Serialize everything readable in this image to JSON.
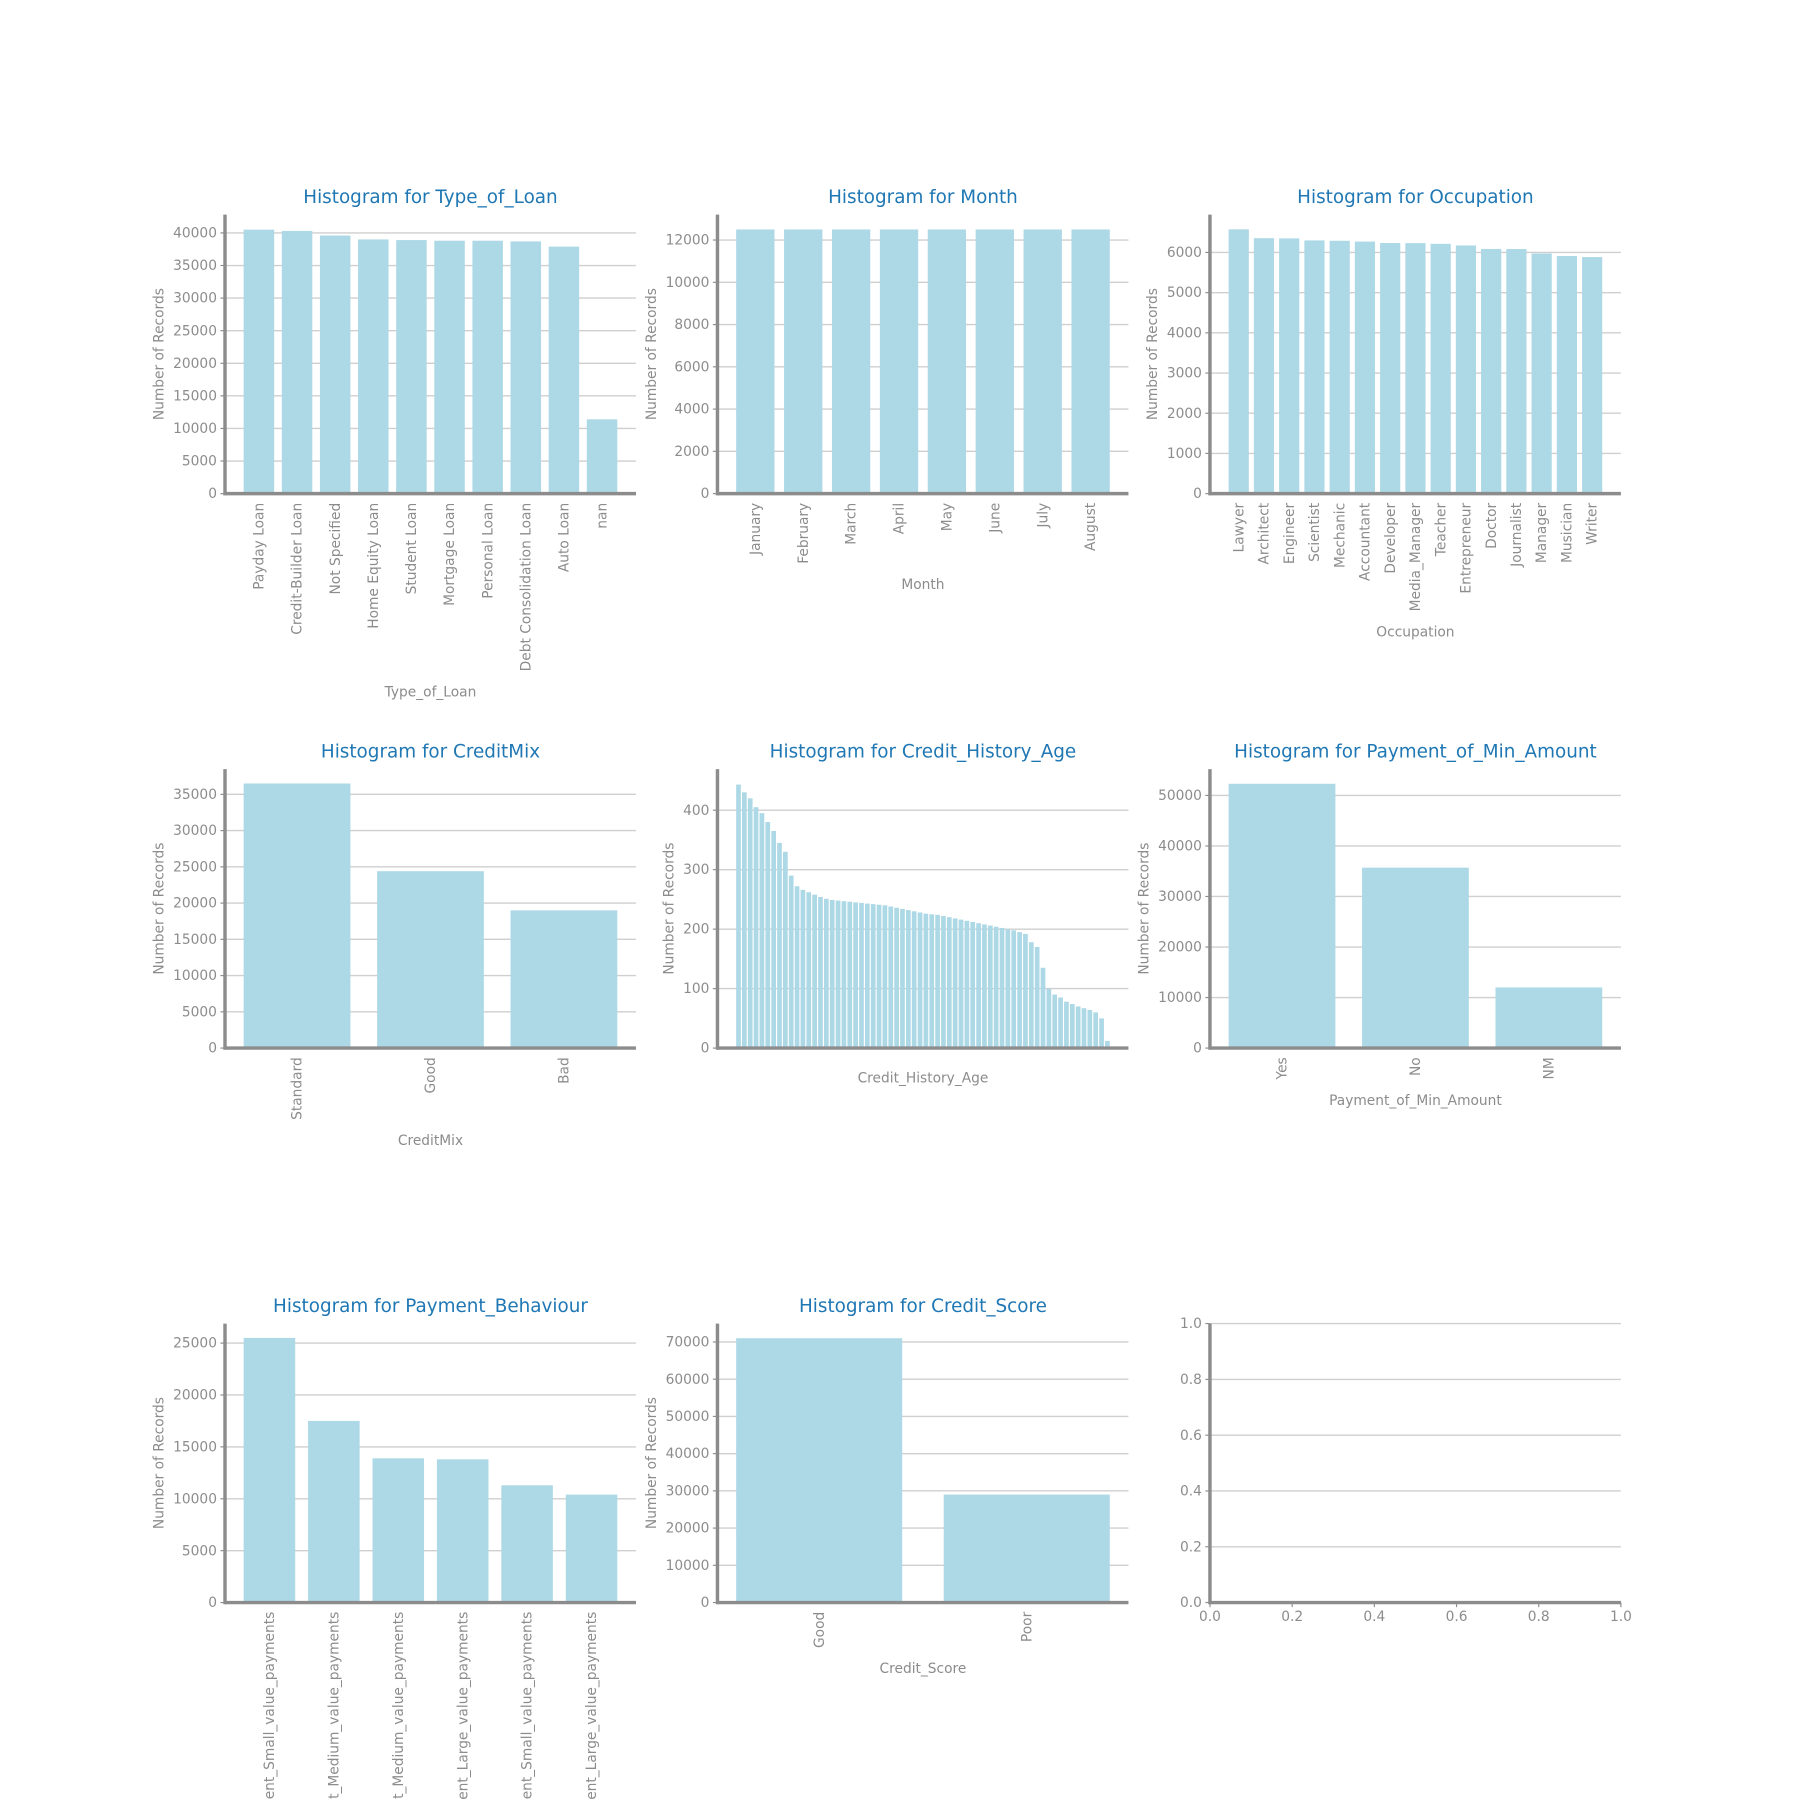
{
  "chart_data": [
    {
      "type": "bar",
      "title": "Histogram for Type_of_Loan",
      "xlabel": "Type_of_Loan",
      "ylabel": "Number of Records",
      "categories": [
        "Payday Loan",
        "Credit-Builder Loan",
        "Not Specified",
        "Home Equity Loan",
        "Student Loan",
        "Mortgage Loan",
        "Personal Loan",
        "Debt Consolidation Loan",
        "Auto Loan",
        "nan"
      ],
      "values": [
        40500,
        40300,
        39600,
        39000,
        38900,
        38800,
        38800,
        38700,
        37900,
        11400
      ],
      "color": "#add8e6",
      "ylim": [
        0,
        42800
      ],
      "yticks": [
        0,
        5000,
        10000,
        15000,
        20000,
        25000,
        30000,
        35000,
        40000
      ],
      "grid": true
    },
    {
      "type": "bar",
      "title": "Histogram for Month",
      "xlabel": "Month",
      "ylabel": "Number of Records",
      "categories": [
        "January",
        "February",
        "March",
        "April",
        "May",
        "June",
        "July",
        "August"
      ],
      "values": [
        12500,
        12500,
        12500,
        12500,
        12500,
        12500,
        12500,
        12500
      ],
      "color": "#add8e6",
      "ylim": [
        0,
        13200
      ],
      "yticks": [
        0,
        2000,
        4000,
        6000,
        8000,
        10000,
        12000
      ],
      "grid": true
    },
    {
      "type": "bar",
      "title": "Histogram for Occupation",
      "xlabel": "Occupation",
      "ylabel": "Number of Records",
      "categories": [
        "Lawyer",
        "Architect",
        "Engineer",
        "Scientist",
        "Mechanic",
        "Accountant",
        "Developer",
        "Media_Manager",
        "Teacher",
        "Entrepreneur",
        "Doctor",
        "Journalist",
        "Manager",
        "Musician",
        "Writer"
      ],
      "values": [
        6575,
        6355,
        6350,
        6299,
        6291,
        6271,
        6235,
        6232,
        6215,
        6174,
        6087,
        6085,
        5973,
        5911,
        5885
      ],
      "color": "#add8e6",
      "ylim": [
        0,
        6940
      ],
      "yticks": [
        0,
        1000,
        2000,
        3000,
        4000,
        5000,
        6000
      ],
      "grid": true
    },
    {
      "type": "bar",
      "title": "Histogram for CreditMix",
      "xlabel": "CreditMix",
      "ylabel": "Number of Records",
      "categories": [
        "Standard",
        "Good",
        "Bad"
      ],
      "values": [
        36500,
        24400,
        19000
      ],
      "color": "#add8e6",
      "ylim": [
        0,
        38480
      ],
      "yticks": [
        0,
        5000,
        10000,
        15000,
        20000,
        25000,
        30000,
        35000
      ],
      "grid": true
    },
    {
      "type": "bar",
      "title": "Histogram for Credit_History_Age",
      "xlabel": "Credit_History_Age",
      "ylabel": "Number of Records",
      "categories": [
        null,
        null,
        null,
        null,
        null,
        null,
        null,
        null,
        null,
        null,
        null,
        null,
        null,
        null,
        null,
        null,
        null,
        null,
        null,
        null,
        null,
        null,
        null,
        null,
        null,
        null,
        null,
        null,
        null,
        null,
        null,
        null,
        null,
        null,
        null,
        null,
        null,
        null,
        null,
        null,
        null,
        null,
        null,
        null,
        null,
        null,
        null,
        null,
        null,
        null,
        null,
        null,
        null,
        null,
        null,
        null,
        null,
        null,
        null,
        null,
        null,
        null,
        null,
        null
      ],
      "values": [
        443,
        430,
        420,
        405,
        395,
        380,
        365,
        345,
        330,
        290,
        272,
        266,
        262,
        258,
        254,
        251,
        249,
        248,
        247,
        246,
        245,
        244,
        243,
        242,
        241,
        240,
        238,
        236,
        234,
        232,
        230,
        228,
        226,
        225,
        224,
        222,
        220,
        218,
        216,
        214,
        212,
        210,
        208,
        206,
        204,
        202,
        200,
        198,
        195,
        192,
        178,
        170,
        135,
        100,
        90,
        85,
        78,
        74,
        70,
        67,
        64,
        60,
        50,
        12
      ],
      "color": "#add8e6",
      "ylim": [
        0,
        469
      ],
      "yticks": [
        0,
        100,
        200,
        300,
        400
      ],
      "grid": true
    },
    {
      "type": "bar",
      "title": "Histogram for Payment_of_Min_Amount",
      "xlabel": "Payment_of_Min_Amount",
      "ylabel": "Number of Records",
      "categories": [
        "Yes",
        "No",
        "NM"
      ],
      "values": [
        52300,
        35700,
        12000
      ],
      "color": "#add8e6",
      "ylim": [
        0,
        55200
      ],
      "yticks": [
        0,
        10000,
        20000,
        30000,
        40000,
        50000
      ],
      "grid": true
    },
    {
      "type": "bar",
      "title": "Histogram for Payment_Behaviour",
      "ylabel": "Number of Records",
      "categories": [
        "Low_spent_Small_value_payments",
        "High_spent_Medium_value_payments",
        "Low_spent_Medium_value_payments",
        "High_spent_Large_value_payments",
        "High_spent_Small_value_payments",
        "Low_spent_Large_value_payments"
      ],
      "values": [
        25500,
        17500,
        13900,
        13800,
        11300,
        10400
      ],
      "color": "#add8e6",
      "ylim": [
        0,
        26880
      ],
      "yticks": [
        0,
        5000,
        10000,
        15000,
        20000,
        25000
      ],
      "grid": true
    },
    {
      "type": "bar",
      "title": "Histogram for Credit_Score",
      "xlabel": "Credit_Score",
      "ylabel": "Number of Records",
      "categories": [
        "Good",
        "Poor"
      ],
      "values": [
        71000,
        29000
      ],
      "color": "#add8e6",
      "ylim": [
        0,
        74930
      ],
      "yticks": [
        0,
        10000,
        20000,
        30000,
        40000,
        50000,
        60000,
        70000
      ],
      "grid": true
    },
    {
      "type": "empty",
      "xlim": [
        0,
        1
      ],
      "xticks": [
        {
          "value": 0,
          "label": "0.0"
        },
        0.2,
        0.4,
        0.6,
        0.8,
        {
          "value": 1,
          "label": "1.0"
        }
      ],
      "ylim": [
        0,
        1
      ],
      "yticks": [
        {
          "value": 0,
          "label": "0.0"
        },
        0.2,
        0.4,
        0.6,
        0.8,
        {
          "value": 1,
          "label": "1.0"
        }
      ],
      "grid": true
    }
  ]
}
